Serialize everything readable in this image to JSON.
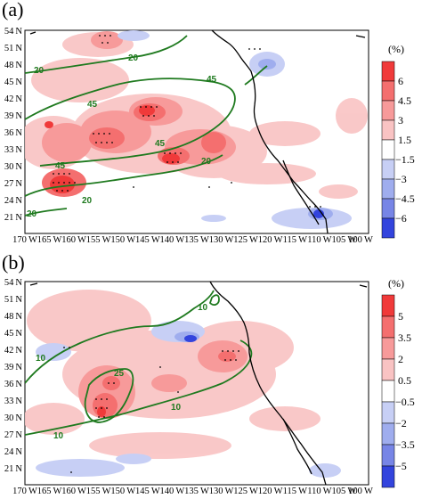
{
  "panels": [
    {
      "label": "(a)",
      "colorbar": {
        "unit": "(%)",
        "ticks": [
          "6",
          "4.5",
          "3",
          "1.5",
          "−1.5",
          "−3",
          "−4.5",
          "−6"
        ],
        "colors": [
          "#f03a3a",
          "#f46f6f",
          "#f79a9a",
          "#f9c3c3",
          "#ffffff",
          "#c7cff5",
          "#9fadee",
          "#7785e6",
          "#3344dd"
        ]
      },
      "contour_labels": [
        "20",
        "20",
        "45",
        "45",
        "45",
        "45",
        "20",
        "20",
        "20"
      ]
    },
    {
      "label": "(b)",
      "colorbar": {
        "unit": "(%)",
        "ticks": [
          "5",
          "3.5",
          "2",
          "0.5",
          "−0.5",
          "−2",
          "−3.5",
          "−5"
        ],
        "colors": [
          "#f03a3a",
          "#f46f6f",
          "#f79a9a",
          "#f9c3c3",
          "#ffffff",
          "#c7cff5",
          "#9fadee",
          "#7785e6",
          "#3344dd"
        ]
      },
      "contour_labels": [
        "10",
        "10",
        "25",
        "10",
        "10"
      ]
    }
  ],
  "lat_labels": [
    "54 N",
    "51 N",
    "48 N",
    "45 N",
    "42 N",
    "39 N",
    "36 N",
    "33 N",
    "30 N",
    "27 N",
    "24 N",
    "21 N"
  ],
  "lon_labels": [
    "170 W",
    "165 W",
    "160 W",
    "155 W",
    "150 W",
    "145 W",
    "140 W",
    "135 W",
    "130 W",
    "125 W",
    "120 W",
    "115 W",
    "110 W",
    "105 W",
    "100 W"
  ],
  "colors": {
    "contour": "#1f7a1f",
    "coast": "#000000",
    "positive": "#f26060",
    "negative": "#6f7fe6"
  }
}
